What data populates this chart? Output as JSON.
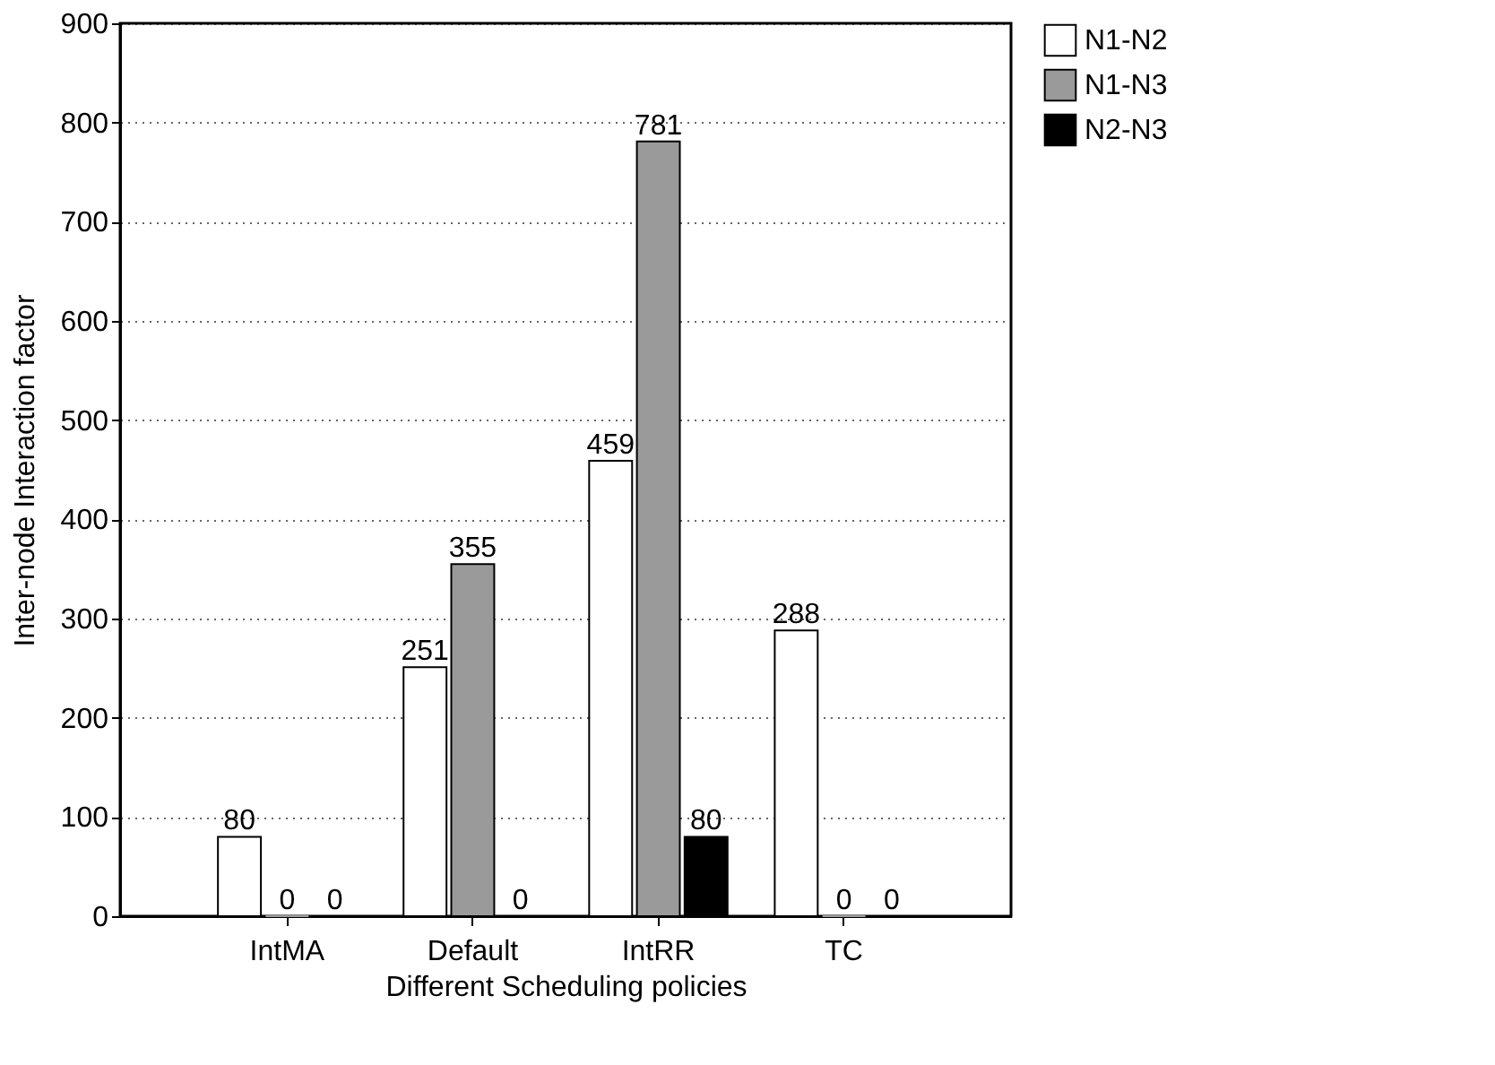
{
  "chart_data": {
    "type": "bar",
    "xlabel": "Different Scheduling policies",
    "ylabel": "Inter-node Interaction factor",
    "categories": [
      "IntMA",
      "Default",
      "IntRR",
      "TC"
    ],
    "series": [
      {
        "name": "N1-N2",
        "color": "#ffffff",
        "values": [
          80,
          251,
          459,
          288
        ]
      },
      {
        "name": "N1-N3",
        "color": "#9a9a9a",
        "values": [
          0,
          355,
          781,
          0
        ]
      },
      {
        "name": "N2-N3",
        "color": "#000000",
        "values": [
          0,
          0,
          80,
          0
        ]
      }
    ],
    "ylim": [
      0,
      900
    ],
    "yticks": [
      0,
      100,
      200,
      300,
      400,
      500,
      600,
      700,
      800,
      900
    ],
    "grid": "y",
    "legend": "top right",
    "data_labels": true
  }
}
